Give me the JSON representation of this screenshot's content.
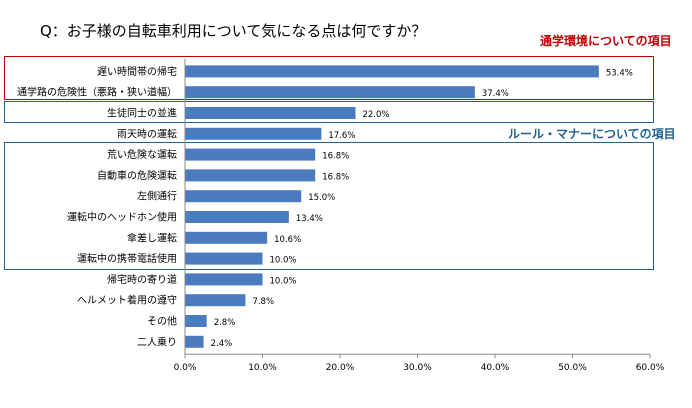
{
  "title": "Q：お子様の自転車利用について気になる点は何ですか？",
  "groups": {
    "env_label": "通学環境についての項目",
    "rule_label": "ルール・マナーについての項目"
  },
  "colors": {
    "bar": "#4a7bbf",
    "env": "#c00000",
    "rule": "#1f6391"
  },
  "chart_data": {
    "type": "bar",
    "orientation": "horizontal",
    "categories": [
      "遅い時間帯の帰宅",
      "通学路の危険性（悪路・狭い道幅）",
      "生徒同士の並進",
      "雨天時の運転",
      "荒い危険な運転",
      "自動車の危険運転",
      "左側通行",
      "運転中のヘッドホン使用",
      "傘差し運転",
      "運転中の携帯電話使用",
      "帰宅時の寄り道",
      "ヘルメット着用の遵守",
      "その他",
      "二人乗り"
    ],
    "values": [
      53.4,
      37.4,
      22.0,
      17.6,
      16.8,
      16.8,
      15.0,
      13.4,
      10.6,
      10.0,
      10.0,
      7.8,
      2.8,
      2.4
    ],
    "value_labels": [
      "53.4%",
      "37.4%",
      "22.0%",
      "17.6%",
      "16.8%",
      "16.8%",
      "15.0%",
      "13.4%",
      "10.6%",
      "10.0%",
      "10.0%",
      "7.8%",
      "2.8%",
      "2.4%"
    ],
    "xlim": [
      0,
      60
    ],
    "xticks": [
      "0.0%",
      "10.0%",
      "20.0%",
      "30.0%",
      "40.0%",
      "50.0%",
      "60.0%"
    ],
    "grid": false
  }
}
